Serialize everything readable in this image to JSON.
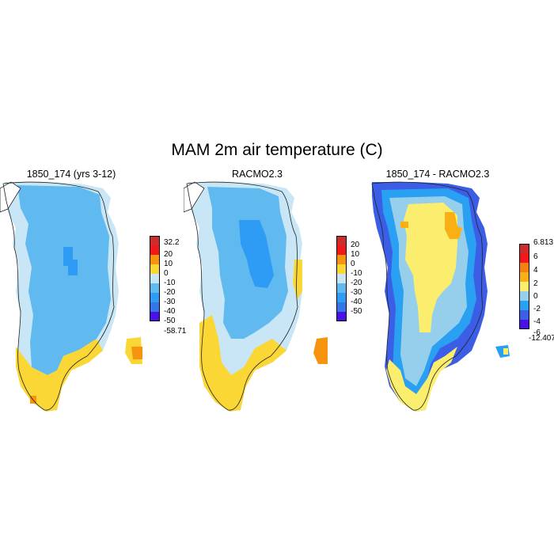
{
  "title": "MAM 2m air temperature (C)",
  "panels": [
    {
      "title": "1850_174 (yrs 3-12)",
      "legend": {
        "colors": [
          "#4a10e8",
          "#3575e8",
          "#2e9bf4",
          "#60baf0",
          "#c8e6f5",
          "#fbd736",
          "#f69410",
          "#f01818",
          "#cc2c2c"
        ],
        "labels": [
          "-58.71",
          "-50",
          "-40",
          "-30",
          "-20",
          "-10",
          "0",
          "10",
          "20",
          "32.2"
        ]
      }
    },
    {
      "title": "RACMO2.3",
      "legend": {
        "colors": [
          "#4a10e8",
          "#3575e8",
          "#2e9bf4",
          "#60baf0",
          "#c8e6f5",
          "#fbd736",
          "#f69410",
          "#f01818",
          "#cc2c2c"
        ],
        "labels": [
          "-50",
          "-40",
          "-30",
          "-20",
          "-10",
          "0",
          "10",
          "20"
        ]
      }
    },
    {
      "title": "1850_174 - RACMO2.3",
      "legend": {
        "colors": [
          "#4a10e8",
          "#3c5ee6",
          "#2aa0f2",
          "#96cfec",
          "#fbee6e",
          "#f8b015",
          "#f57f10",
          "#f01818",
          "#cc2c2c"
        ],
        "labels": [
          "-12.407",
          "-6",
          "-4",
          "-2",
          "0",
          "2",
          "4",
          "6",
          "6.813"
        ]
      }
    }
  ]
}
